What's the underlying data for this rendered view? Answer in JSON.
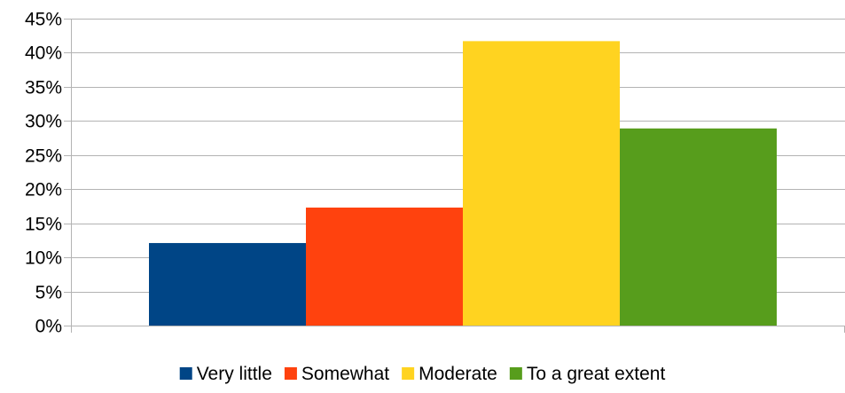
{
  "chart_data": {
    "type": "bar",
    "title": "",
    "xlabel": "",
    "ylabel": "",
    "ylim": [
      0,
      0.45
    ],
    "y_ticks": [
      0,
      0.05,
      0.1,
      0.15,
      0.2,
      0.25,
      0.3,
      0.35,
      0.4,
      0.45
    ],
    "y_tick_labels": [
      "0%",
      "5%",
      "10%",
      "15%",
      "20%",
      "25%",
      "30%",
      "35%",
      "40%",
      "45%"
    ],
    "grid": true,
    "legend_position": "bottom",
    "series": [
      {
        "name": "Very little",
        "value": 0.121,
        "color": "#004586"
      },
      {
        "name": "Somewhat",
        "value": 0.173,
        "color": "#ff420e"
      },
      {
        "name": "Moderate",
        "value": 0.417,
        "color": "#ffd320"
      },
      {
        "name": "To a great extent",
        "value": 0.289,
        "color": "#579d1c"
      }
    ]
  }
}
